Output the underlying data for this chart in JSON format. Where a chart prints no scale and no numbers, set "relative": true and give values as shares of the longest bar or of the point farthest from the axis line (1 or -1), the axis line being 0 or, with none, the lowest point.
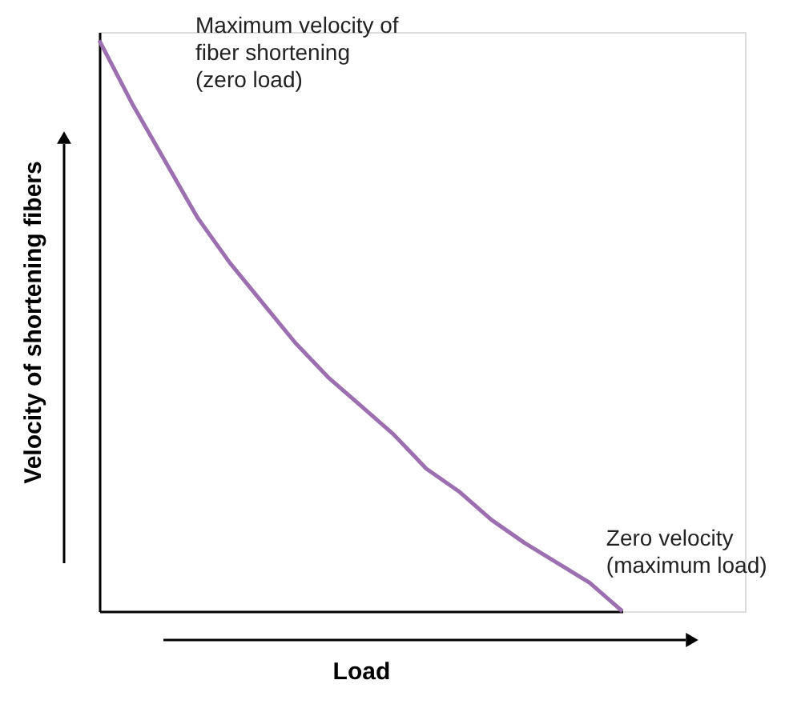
{
  "chart_data": {
    "type": "line",
    "relative": true,
    "xlabel": "Load",
    "ylabel": "Velocity of shortening fibers",
    "categories": [
      null,
      null,
      null,
      null,
      null,
      null,
      null,
      null,
      null,
      null,
      null,
      null,
      null,
      null,
      null,
      null,
      null
    ],
    "series": [
      {
        "color": "#9b6fb0",
        "values": [
          1.0,
          0.89,
          0.79,
          0.69,
          0.61,
          0.54,
          0.47,
          0.41,
          0.36,
          0.31,
          0.25,
          0.21,
          0.16,
          0.12,
          0.085,
          0.05,
          0.0
        ]
      }
    ],
    "annotations": [
      "Maximum velocity of\nfiber shortening\n(zero load)",
      "Zero velocity\n(maximum load)"
    ],
    "grid": false
  }
}
